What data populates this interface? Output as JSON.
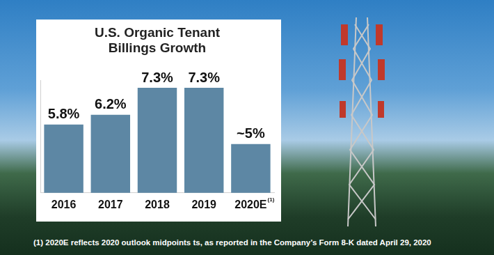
{
  "chart_data": {
    "type": "bar",
    "title": [
      "U.S. Organic Tenant",
      "Billings Growth"
    ],
    "categories": [
      "2016",
      "2017",
      "2018",
      "2019",
      "2020E"
    ],
    "values": [
      5.8,
      6.2,
      7.3,
      7.3,
      5
    ],
    "value_labels": [
      "5.8%",
      "6.2%",
      "7.3%",
      "7.3%",
      "~5%"
    ],
    "data_labels": true,
    "color": "#5d87a4",
    "ylim": [
      3,
      7.6
    ],
    "grid": false,
    "tick_labels": "x",
    "annotations": [
      {
        "category": "2020E",
        "text": "(1)"
      }
    ],
    "footnote": "(1) 2020E reflects 2020 outlook midpoints ts, as reported in the Company’s Form 8-K dated April 29, 2020"
  }
}
